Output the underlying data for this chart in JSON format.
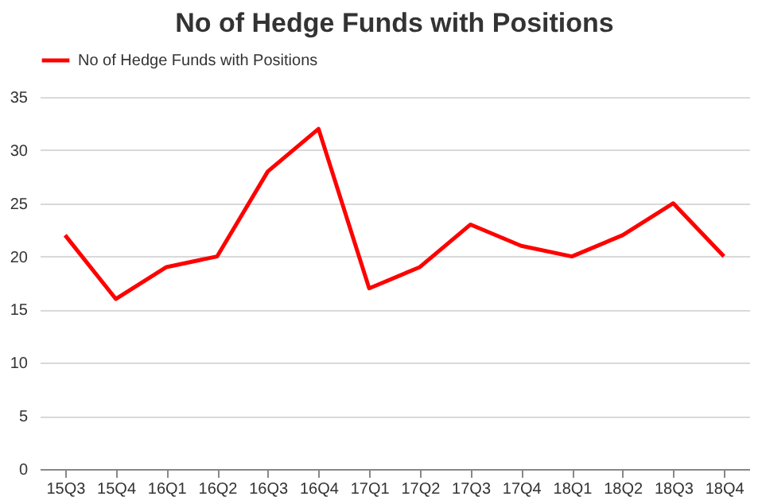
{
  "chart_data": {
    "type": "line",
    "title": "No of Hedge Funds with Positions",
    "categories": [
      "15Q3",
      "15Q4",
      "16Q1",
      "16Q2",
      "16Q3",
      "16Q4",
      "17Q1",
      "17Q2",
      "17Q3",
      "17Q4",
      "18Q1",
      "18Q2",
      "18Q3",
      "18Q4"
    ],
    "series": [
      {
        "name": "No of Hedge Funds with Positions",
        "color": "#ff0000",
        "values": [
          22,
          16,
          19,
          20,
          28,
          32,
          17,
          19,
          23,
          21,
          20,
          22,
          25,
          20
        ]
      }
    ],
    "ylim": [
      0,
      35
    ],
    "yticks": [
      0,
      5,
      10,
      15,
      20,
      25,
      30,
      35
    ],
    "grid": "y",
    "legend": "top",
    "marker": "none",
    "line_style": "solid"
  }
}
